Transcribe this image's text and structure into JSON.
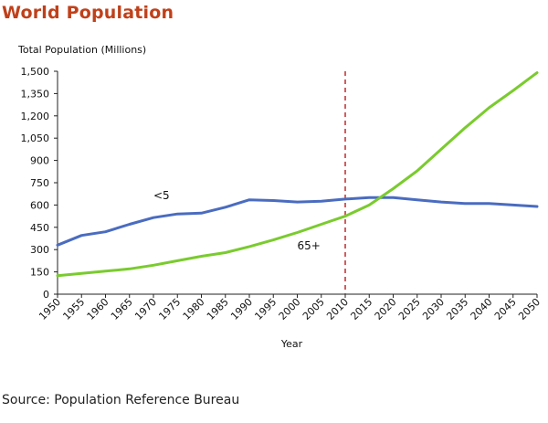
{
  "title": "World Population",
  "source": "Source: Population Reference Bureau",
  "chart_data": {
    "type": "line",
    "ylabel": "Total Population (Millions)",
    "xlabel": "Year",
    "ylim": [
      0,
      1500
    ],
    "yticks": [
      0,
      150,
      300,
      450,
      600,
      750,
      900,
      1050,
      1200,
      1350,
      1500
    ],
    "ytick_labels": [
      "0",
      "150",
      "300",
      "450",
      "600",
      "750",
      "900",
      "1,050",
      "1,200",
      "1,350",
      "1,500"
    ],
    "x": [
      1950,
      1955,
      1960,
      1965,
      1970,
      1975,
      1980,
      1985,
      1990,
      1995,
      2000,
      2005,
      2010,
      2015,
      2020,
      2025,
      2030,
      2035,
      2040,
      2045,
      2050
    ],
    "reference_line": {
      "x": 2010,
      "style": "dashed",
      "color": "#c0282d"
    },
    "series": [
      {
        "name": "<5",
        "color": "#4a6cc0",
        "values": [
          330,
          395,
          420,
          470,
          515,
          540,
          545,
          585,
          635,
          630,
          620,
          625,
          640,
          650,
          650,
          635,
          620,
          610,
          610,
          600,
          590
        ]
      },
      {
        "name": "65+",
        "color": "#7acb2e",
        "values": [
          125,
          140,
          155,
          170,
          195,
          225,
          255,
          280,
          320,
          365,
          415,
          470,
          525,
          600,
          710,
          830,
          975,
          1120,
          1255,
          1370,
          1490
        ]
      }
    ]
  }
}
